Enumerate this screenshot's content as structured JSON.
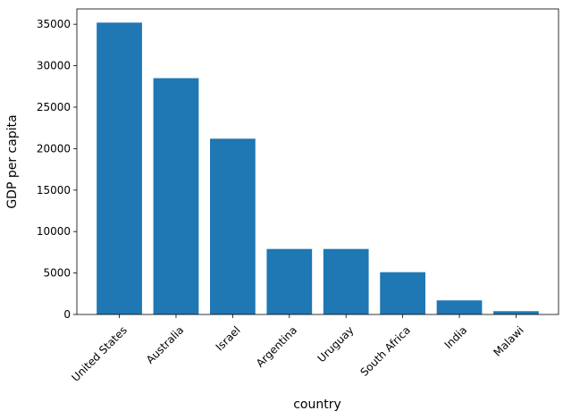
{
  "chart_data": {
    "type": "bar",
    "categories": [
      "United States",
      "Australia",
      "Israel",
      "Argentina",
      "Uruguay",
      "South Africa",
      "India",
      "Malawi"
    ],
    "values": [
      35200,
      28500,
      21200,
      7900,
      7900,
      5100,
      1700,
      400
    ],
    "color": "#1f77b4",
    "xlabel": "country",
    "ylabel": "GDP per capita",
    "ylim": [
      0,
      36850
    ],
    "yticks": [
      0,
      5000,
      10000,
      15000,
      20000,
      25000,
      30000,
      35000
    ],
    "grid": false
  }
}
